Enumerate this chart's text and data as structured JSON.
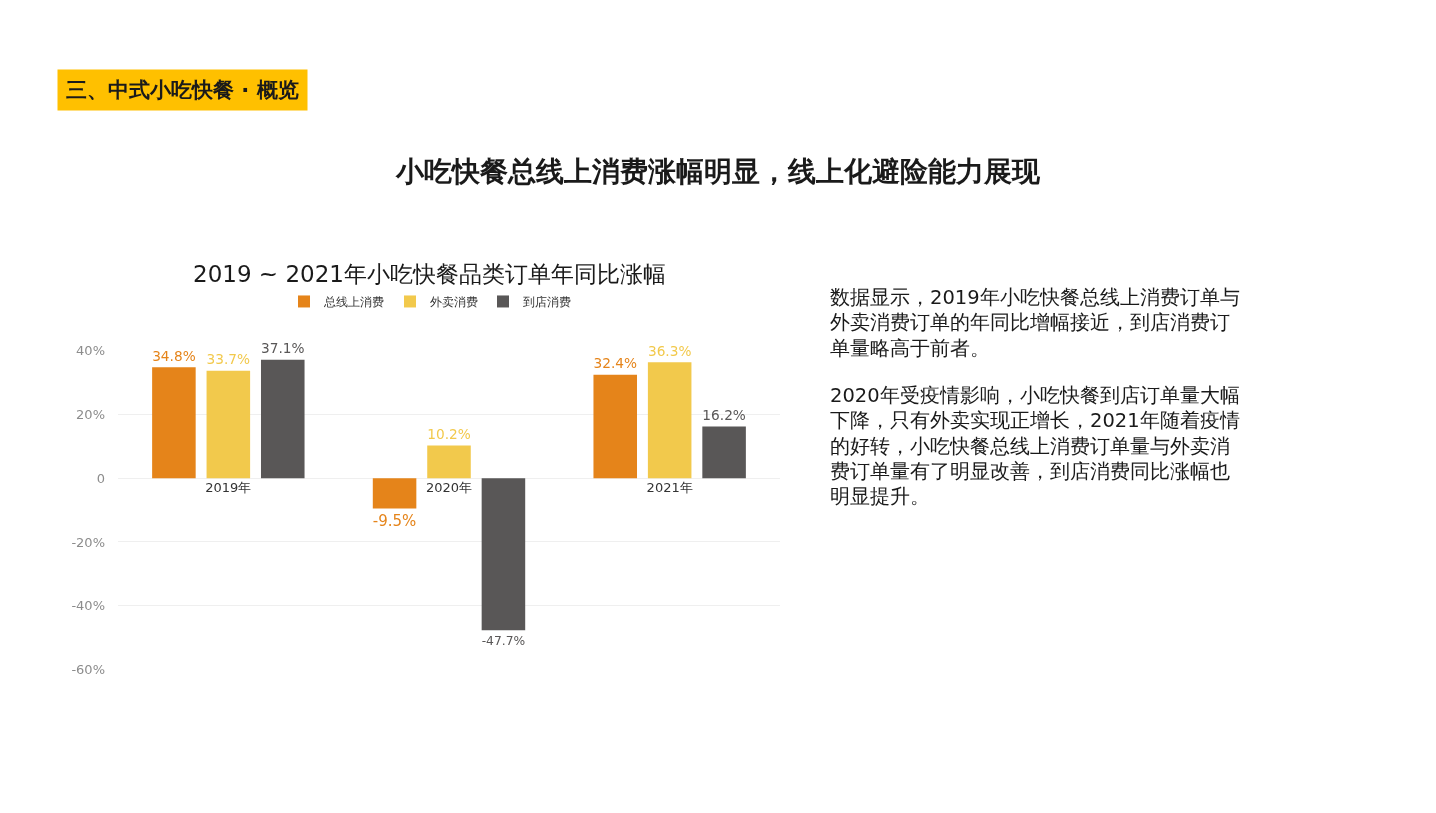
{
  "chart_data": {
    "type": "bar",
    "title": "小吃快餐总线上消费涨幅明显，线上化避险能力展现",
    "subtitle": "2019 ~ 2021年小吃快餐品类订单年同比涨幅",
    "categories": [
      "2019年",
      "2020年",
      "2021年"
    ],
    "series": [
      {
        "name": "总线上消费",
        "color": "#e5841a",
        "values": [
          34.8,
          -9.5,
          32.4
        ],
        "value_labels": [
          "34.8%",
          "-9.5%",
          "32.4%"
        ]
      },
      {
        "name": "外卖消费",
        "color": "#f2c94c",
        "values": [
          33.7,
          10.2,
          36.3
        ],
        "value_labels": [
          "33.7%",
          "10.2%",
          "36.3%"
        ]
      },
      {
        "name": "到店消费",
        "color": "#595757",
        "values": [
          37.1,
          -47.7,
          16.2
        ],
        "value_labels": [
          "37.1%",
          "-47.7%",
          "16.2%"
        ]
      }
    ],
    "ylim": [
      -60,
      40
    ],
    "yticks": [
      {
        "value": -60,
        "label": "-60%"
      },
      {
        "value": -40,
        "label": "-40%"
      },
      {
        "value": -20,
        "label": "-20%"
      },
      0,
      {
        "value": 20,
        "label": "20%"
      },
      {
        "value": 40,
        "label": "40%"
      }
    ],
    "grid": "y",
    "legend": "top",
    "annotations": [
      "三、中式小吃快餐 · 概览",
      "数据显示，2019年小吃快餐总线上消费订单与外卖消费订单的年同比增幅接近，到店消费订单量略高于前者。",
      "2020年受疫情影响，小吃快餐到店订单量大幅下降，只有外卖实现正增长，2021年随着疫情的好转，小吃快餐总线上消费订单量与外卖消费订单量有了明显改善，到店消费同比涨幅也明显提升。"
    ]
  }
}
